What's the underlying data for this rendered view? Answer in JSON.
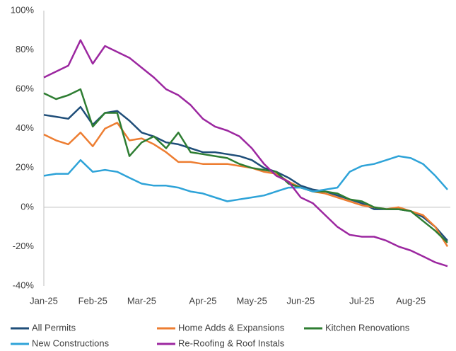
{
  "chart_data": {
    "type": "line",
    "categories": [
      "Jan-25",
      null,
      null,
      null,
      "Feb-25",
      null,
      null,
      null,
      "Mar-25",
      null,
      null,
      null,
      null,
      "Apr-25",
      null,
      null,
      null,
      "May-25",
      null,
      null,
      null,
      "Jun-25",
      null,
      null,
      null,
      null,
      "Jul-25",
      null,
      null,
      null,
      "Aug-25",
      null,
      null,
      null
    ],
    "series": [
      {
        "name": "All Permits",
        "color": "#1f4e79",
        "values": [
          47,
          46,
          45,
          51,
          42,
          48,
          49,
          44,
          38,
          36,
          33,
          32,
          30,
          28,
          28,
          27,
          26,
          24,
          20,
          18,
          15,
          11,
          9,
          8,
          6,
          4,
          2,
          -1,
          -1,
          -1,
          -2,
          -5,
          -10,
          -17
        ]
      },
      {
        "name": "Home Adds & Expansions",
        "color": "#ed7d31",
        "values": [
          37,
          34,
          32,
          38,
          31,
          40,
          43,
          34,
          35,
          32,
          28,
          23,
          23,
          22,
          22,
          22,
          21,
          20,
          18,
          17,
          13,
          10,
          8,
          7,
          5,
          3,
          1,
          0,
          -1,
          0,
          -2,
          -4,
          -10,
          -20
        ]
      },
      {
        "name": "Kitchen Renovations",
        "color": "#2e7d32",
        "values": [
          58,
          55,
          57,
          60,
          41,
          48,
          48,
          26,
          33,
          36,
          30,
          38,
          28,
          27,
          26,
          25,
          22,
          20,
          19,
          18,
          12,
          10,
          8,
          8,
          7,
          4,
          3,
          0,
          -1,
          -1,
          -2,
          -7,
          -12,
          -18
        ]
      },
      {
        "name": "New Constructions",
        "color": "#2ea3d8",
        "values": [
          16,
          17,
          17,
          24,
          18,
          19,
          18,
          15,
          12,
          11,
          11,
          10,
          8,
          7,
          5,
          3,
          4,
          5,
          6,
          8,
          10,
          10,
          8,
          9,
          10,
          18,
          21,
          22,
          24,
          26,
          25,
          22,
          16,
          9
        ]
      },
      {
        "name": "Re-Roofing & Roof Instals",
        "color": "#9c27a0",
        "values": [
          66,
          69,
          72,
          85,
          73,
          82,
          79,
          76,
          71,
          66,
          60,
          57,
          52,
          45,
          41,
          39,
          36,
          30,
          22,
          16,
          13,
          5,
          2,
          -4,
          -10,
          -14,
          -15,
          -15,
          -17,
          -20,
          -22,
          -25,
          -28,
          -30
        ]
      }
    ],
    "ylim": [
      -40,
      100
    ],
    "yticks": [
      {
        "value": -40,
        "label": "-40%"
      },
      {
        "value": -20,
        "label": "-20%"
      },
      {
        "value": 0,
        "label": "0%"
      },
      {
        "value": 20,
        "label": "20%"
      },
      {
        "value": 40,
        "label": "40%"
      },
      {
        "value": 60,
        "label": "60%"
      },
      {
        "value": 80,
        "label": "80%"
      },
      {
        "value": 100,
        "label": "100%"
      }
    ],
    "grid": false,
    "legend": "bottom"
  }
}
